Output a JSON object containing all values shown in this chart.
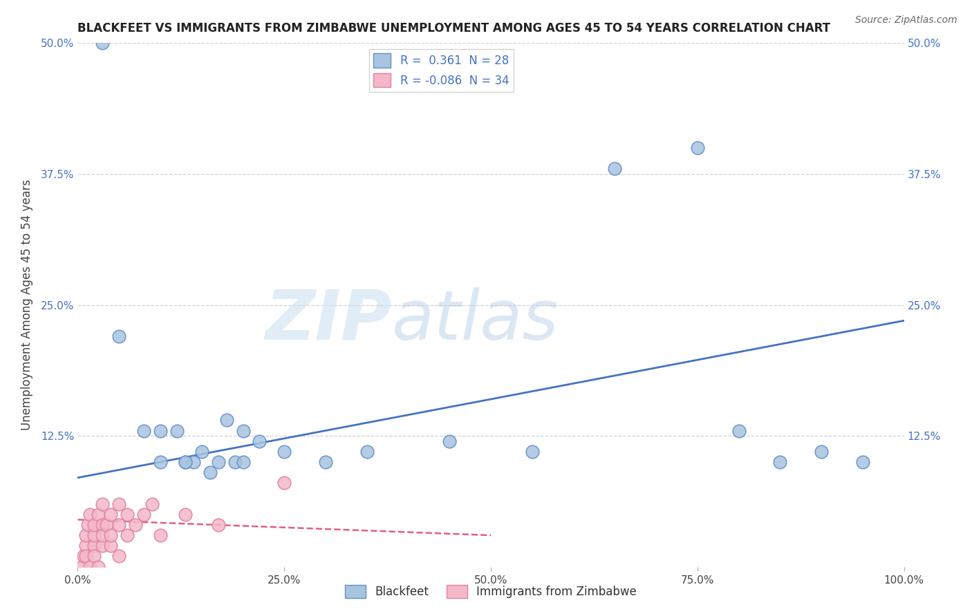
{
  "title": "BLACKFEET VS IMMIGRANTS FROM ZIMBABWE UNEMPLOYMENT AMONG AGES 45 TO 54 YEARS CORRELATION CHART",
  "source": "Source: ZipAtlas.com",
  "ylabel": "Unemployment Among Ages 45 to 54 years",
  "xlim": [
    0,
    100
  ],
  "ylim": [
    0,
    50
  ],
  "blue_scatter_color": "#a8c4e0",
  "blue_edge_color": "#6090c8",
  "blue_line_color": "#4472c4",
  "pink_scatter_color": "#f4b8c8",
  "pink_edge_color": "#e080a0",
  "pink_line_color": "#e06080",
  "background_color": "#ffffff",
  "grid_color": "#cccccc",
  "watermark_zip": "ZIP",
  "watermark_atlas": "atlas",
  "blackfeet_x": [
    3,
    5,
    8,
    10,
    12,
    13,
    14,
    15,
    16,
    17,
    18,
    19,
    20,
    22,
    25,
    30,
    35,
    45,
    55,
    65,
    75,
    80,
    85,
    90,
    95,
    10,
    13,
    20
  ],
  "blackfeet_y": [
    50,
    22,
    13,
    10,
    13,
    10,
    10,
    11,
    9,
    10,
    14,
    10,
    13,
    12,
    11,
    10,
    11,
    12,
    11,
    38,
    40,
    13,
    10,
    11,
    10,
    13,
    10,
    10
  ],
  "zimbabwe_x": [
    0.5,
    0.7,
    1,
    1,
    1,
    1.2,
    1.5,
    1.5,
    2,
    2,
    2,
    2,
    2.5,
    2.5,
    3,
    3,
    3,
    3,
    3.5,
    4,
    4,
    4,
    5,
    5,
    5,
    6,
    6,
    7,
    8,
    9,
    10,
    13,
    17,
    25
  ],
  "zimbabwe_y": [
    0,
    1,
    2,
    3,
    1,
    4,
    0,
    5,
    2,
    3,
    4,
    1,
    0,
    5,
    2,
    4,
    6,
    3,
    4,
    2,
    5,
    3,
    1,
    4,
    6,
    3,
    5,
    4,
    5,
    6,
    3,
    5,
    4,
    8
  ],
  "bf_line_x": [
    0,
    100
  ],
  "bf_line_y": [
    8.5,
    23.5
  ],
  "zim_line_x": [
    0,
    50
  ],
  "zim_line_y": [
    4.5,
    3.0
  ]
}
